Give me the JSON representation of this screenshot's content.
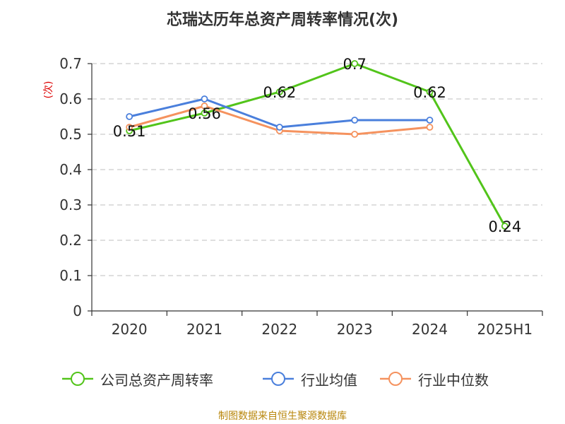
{
  "title": "芯瑞达历年总资产周转率情况(次)",
  "source": "制图数据来自恒生聚源数据库",
  "colors": {
    "series_0": "#52c41a",
    "series_1": "#4a7fdc",
    "series_2": "#f5925e",
    "ylabel": "#dd0000",
    "source": "#b8860b",
    "grid": "#cccccc",
    "axis": "#333333"
  },
  "chart_data": {
    "type": "line",
    "title": "芯瑞达历年总资产周转率情况(次)",
    "ylabel": "(次)",
    "xlabel": "",
    "categories": [
      "2020",
      "2021",
      "2022",
      "2023",
      "2024",
      "2025H1"
    ],
    "ylim": [
      0,
      0.7
    ],
    "yticks": [
      0,
      0.1,
      0.2,
      0.3,
      0.4,
      0.5,
      0.6,
      0.7
    ],
    "ytick_labels": [
      "0",
      "0.1",
      "0.2",
      "0.3",
      "0.4",
      "0.5",
      "0.6",
      "0.7"
    ],
    "grid": true,
    "legend_position": "bottom",
    "series": [
      {
        "name": "公司总资产周转率",
        "values": [
          0.51,
          0.56,
          0.62,
          0.7,
          0.62,
          0.24
        ],
        "labels": [
          "0.51",
          "0.56",
          "0.62",
          "0.7",
          "0.62",
          "0.24"
        ],
        "show_labels": true
      },
      {
        "name": "行业均值",
        "values": [
          0.55,
          0.6,
          0.52,
          0.54,
          0.54,
          null
        ],
        "show_labels": false
      },
      {
        "name": "行业中位数",
        "values": [
          0.52,
          0.58,
          0.51,
          0.5,
          0.52,
          null
        ],
        "show_labels": false
      }
    ]
  }
}
